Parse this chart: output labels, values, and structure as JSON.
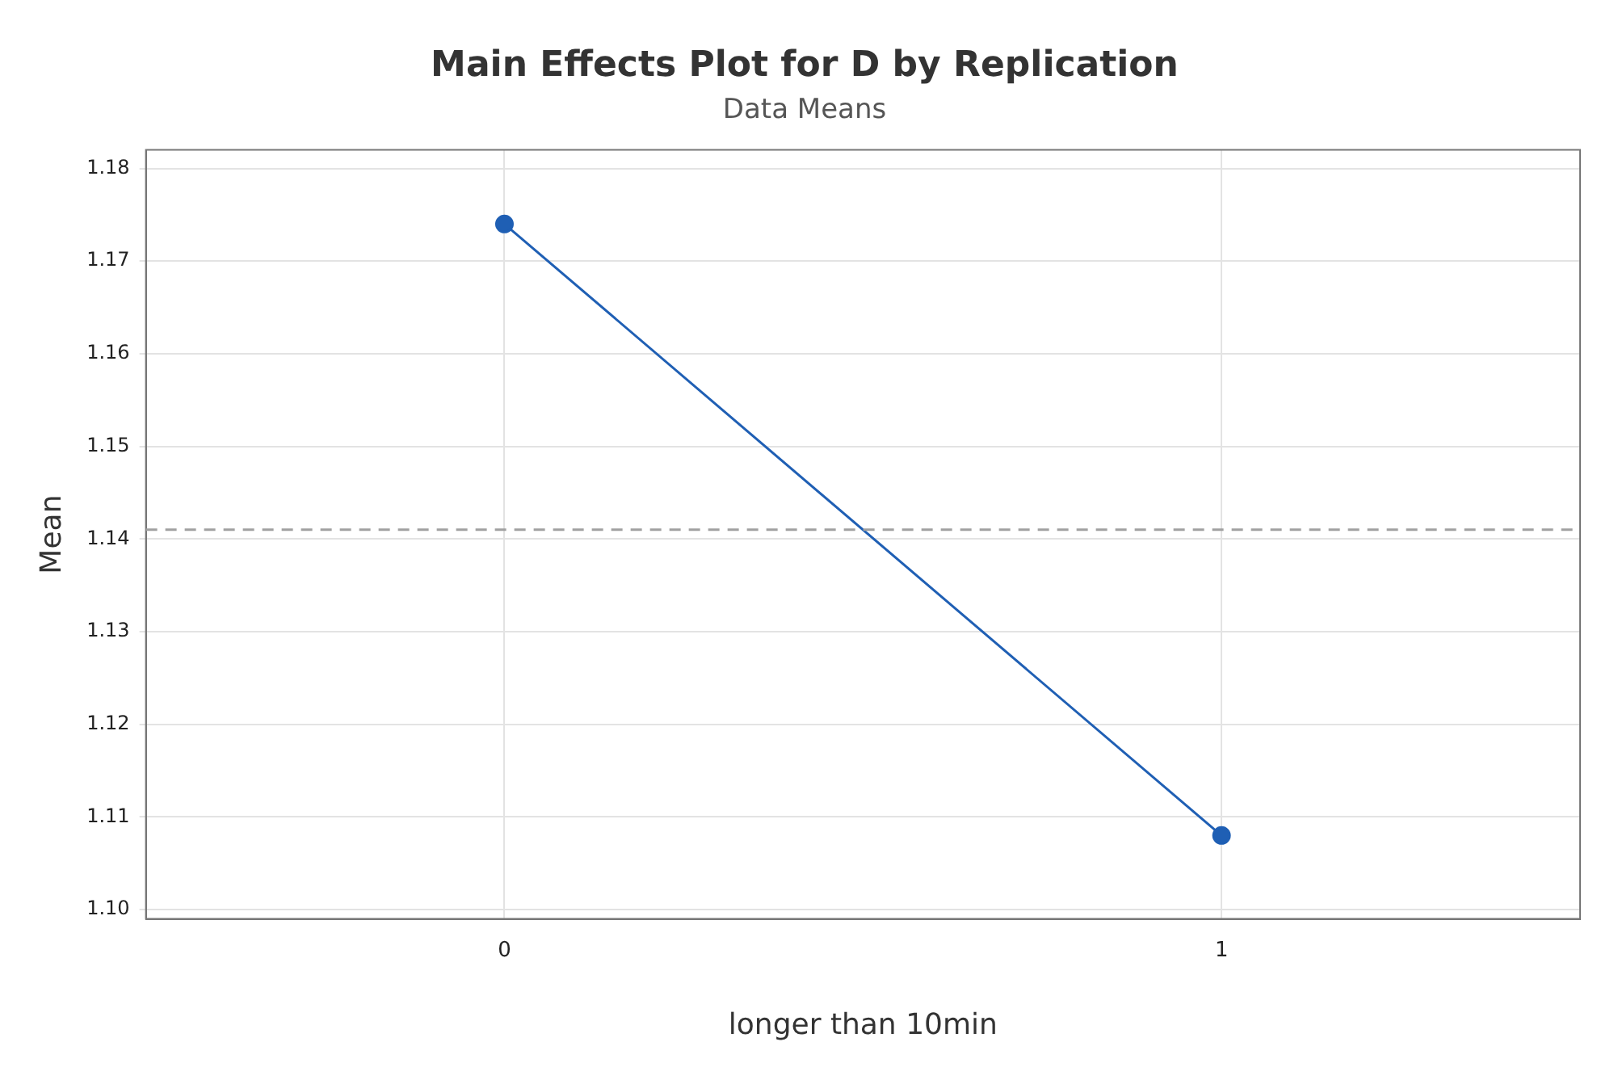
{
  "chart_data": {
    "type": "line",
    "title": "Main Effects Plot for D by Replication",
    "subtitle": "Data Means",
    "xlabel": "longer than 10min",
    "ylabel": "Mean",
    "x": [
      0,
      1
    ],
    "xlim": [
      -0.5,
      1.5
    ],
    "xticks": [
      0,
      1
    ],
    "ylim": [
      1.099,
      1.182
    ],
    "yticks": [
      {
        "value": 1.1,
        "label": "1.10"
      },
      1.11,
      1.12,
      1.13,
      1.14,
      1.15,
      1.16,
      1.17,
      1.18
    ],
    "series": [
      {
        "color": "#1f5fb4",
        "values": [
          1.174,
          1.108
        ]
      }
    ],
    "ref_lines": [
      {
        "axis": "y",
        "value": 1.141,
        "color": "#a0a0a0",
        "line_style": "dashed"
      }
    ],
    "grid": true,
    "legend": false,
    "marker": "circle",
    "line_style": "solid"
  }
}
